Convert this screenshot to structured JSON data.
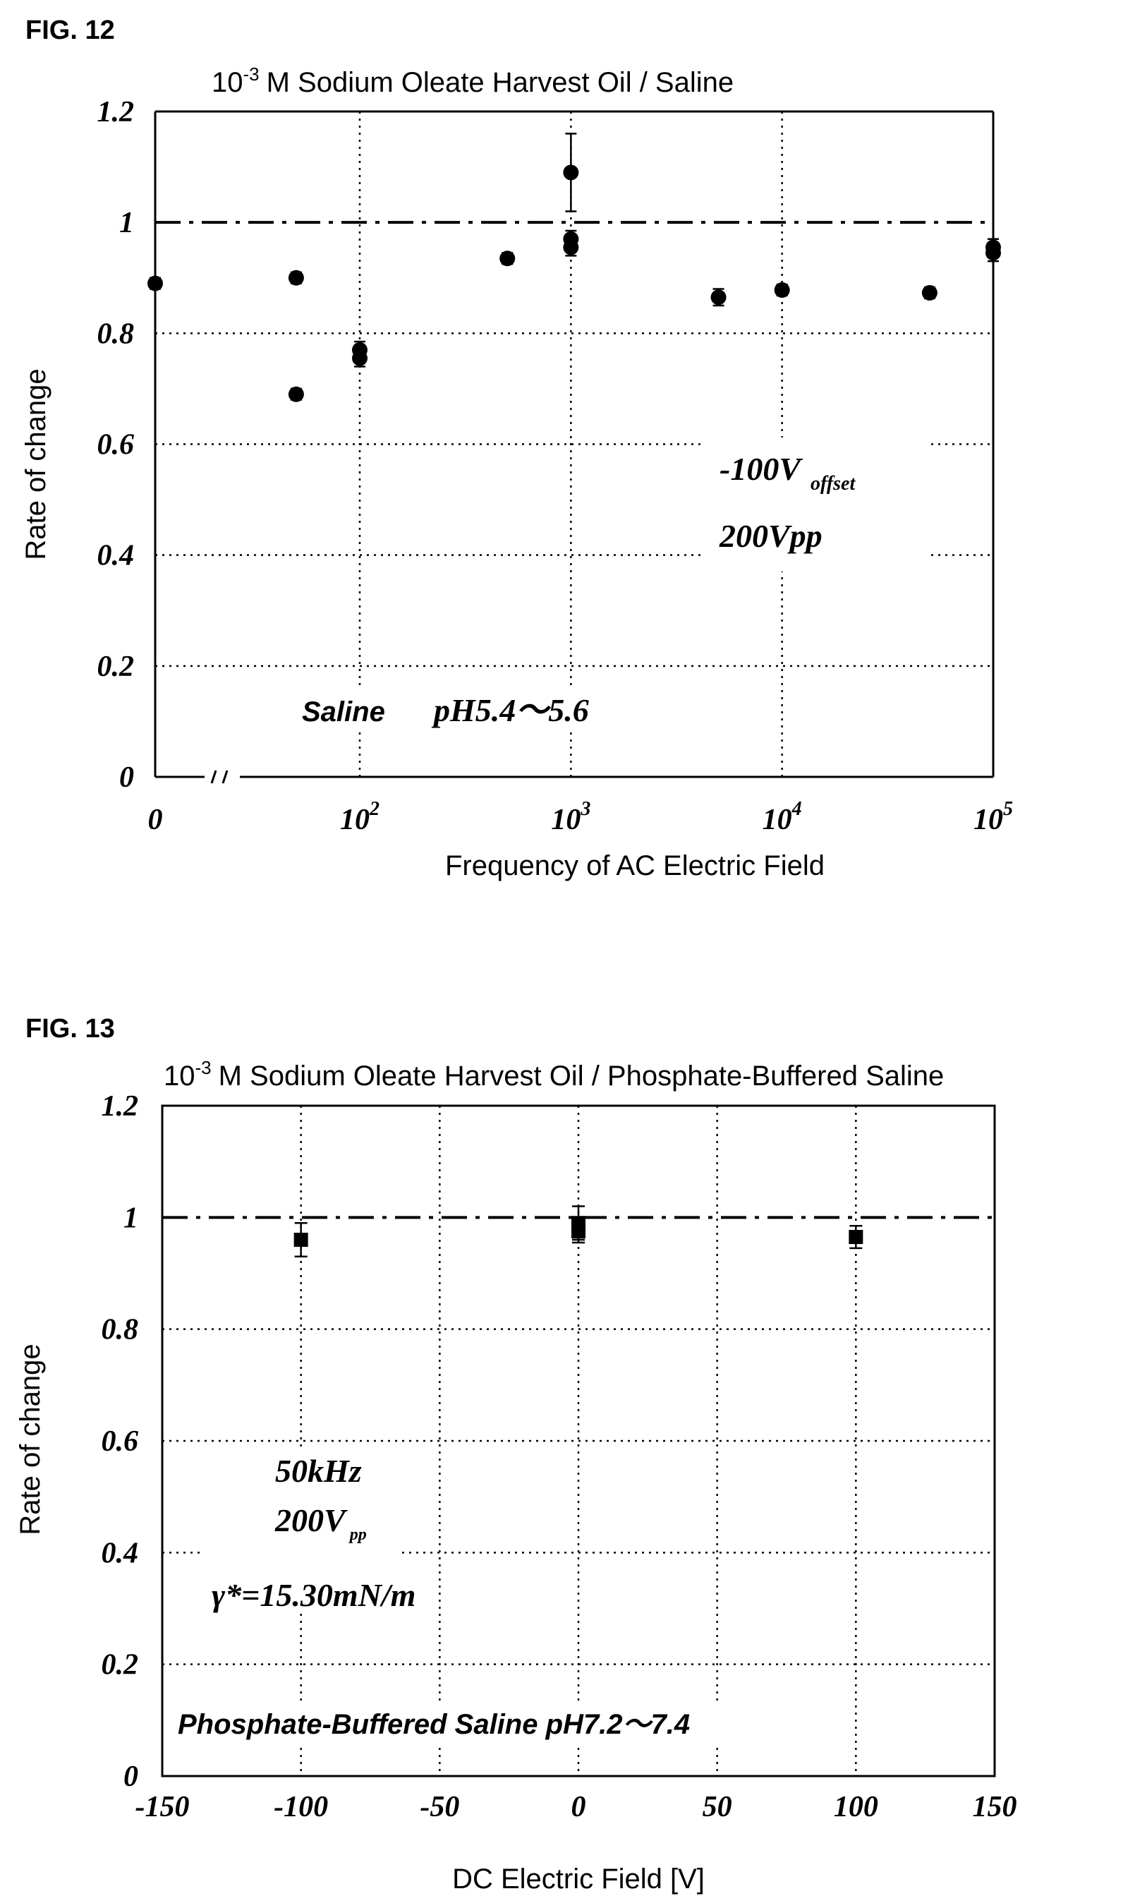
{
  "chart_data": [
    {
      "figure_label": "FIG. 12",
      "type": "scatter",
      "title": "M Sodium Oleate Harvest Oil / Saline",
      "title_prefix_base": "10",
      "title_prefix_exp": "-3",
      "xlabel": "Frequency of AC Electric Field",
      "ylabel": "Rate of change",
      "x_scale": "log (with 0 at origin, axis break)",
      "xlim": [
        0,
        100000
      ],
      "ylim": [
        0,
        1.2
      ],
      "grid": true,
      "x_ticks": [
        {
          "label": "0",
          "base": "0",
          "exp": ""
        },
        {
          "label": "10^2",
          "base": "10",
          "exp": "2"
        },
        {
          "label": "10^3",
          "base": "10",
          "exp": "3"
        },
        {
          "label": "10^4",
          "base": "10",
          "exp": "4"
        },
        {
          "label": "10^5",
          "base": "10",
          "exp": "5"
        }
      ],
      "y_ticks": [
        "0",
        "0.2",
        "0.4",
        "0.6",
        "0.8",
        "1",
        "1.2"
      ],
      "reference_line": 1,
      "annotations": {
        "voltage_offset_main": "-100V",
        "voltage_offset_sub": "offset",
        "vpp": "200Vpp",
        "medium": "Saline",
        "ph": "pH5.4～5.6"
      },
      "points": [
        {
          "x": 0,
          "y": 0.89,
          "err": 0.01
        },
        {
          "x": 50,
          "y": 0.9,
          "err": 0.01
        },
        {
          "x": 50,
          "y": 0.69,
          "err": 0.01
        },
        {
          "x": 100,
          "y": 0.77,
          "err": 0.015
        },
        {
          "x": 100,
          "y": 0.755,
          "err": 0.015
        },
        {
          "x": 500,
          "y": 0.935,
          "err": 0.01
        },
        {
          "x": 1000,
          "y": 1.09,
          "err": 0.07
        },
        {
          "x": 1000,
          "y": 0.97,
          "err": 0.015
        },
        {
          "x": 1000,
          "y": 0.955,
          "err": 0.015
        },
        {
          "x": 5000,
          "y": 0.865,
          "err": 0.015
        },
        {
          "x": 10000,
          "y": 0.878,
          "err": 0.01
        },
        {
          "x": 50000,
          "y": 0.873,
          "err": 0.01
        },
        {
          "x": 100000,
          "y": 0.955,
          "err": 0.015
        },
        {
          "x": 100000,
          "y": 0.945,
          "err": 0.015
        }
      ]
    },
    {
      "figure_label": "FIG. 13",
      "type": "scatter",
      "title": "M Sodium Oleate Harvest Oil / Phosphate-Buffered Saline",
      "title_prefix_base": "10",
      "title_prefix_exp": "-3",
      "xlabel": "DC Electric Field [V]",
      "ylabel": "Rate of change",
      "xlim": [
        -150,
        150
      ],
      "ylim": [
        0,
        1.2
      ],
      "grid": true,
      "x_ticks": [
        "-150",
        "-100",
        "-50",
        "0",
        "50",
        "100",
        "150"
      ],
      "y_ticks": [
        "0",
        "0.2",
        "0.4",
        "0.6",
        "0.8",
        "1",
        "1.2"
      ],
      "reference_line": 1,
      "annotations": {
        "frequency": "50kHz",
        "vpp_main": "200V",
        "vpp_sub": "pp",
        "gamma": "γ*=15.30mN/m",
        "medium_ph": "Phosphate-Buffered Saline pH7.2～7.4"
      },
      "points": [
        {
          "x": -100,
          "y": 0.96,
          "err": 0.03
        },
        {
          "x": 0,
          "y": 0.99,
          "err": 0.03
        },
        {
          "x": 0,
          "y": 0.975,
          "err": 0.02
        },
        {
          "x": 100,
          "y": 0.965,
          "err": 0.02
        }
      ]
    }
  ]
}
